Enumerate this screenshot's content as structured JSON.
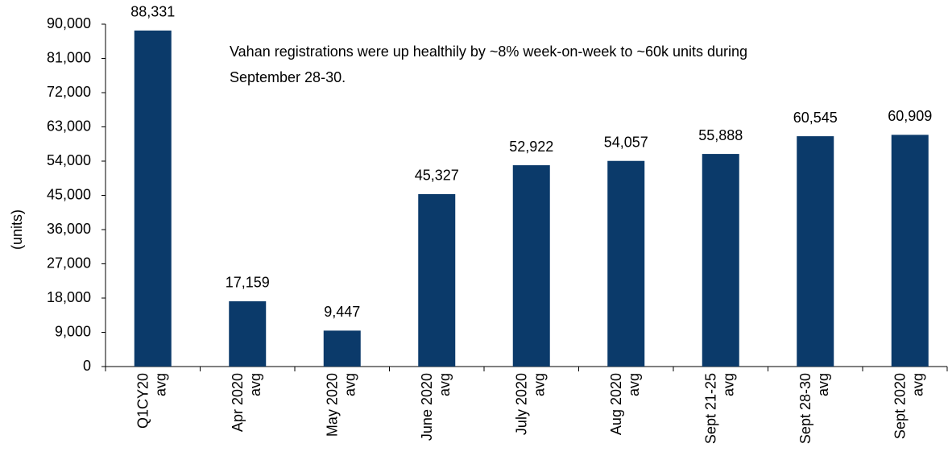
{
  "chart_data": {
    "type": "bar",
    "y_label": "(units)",
    "annotation": [
      "Vahan registrations were up healthily by ~8% week-on-week to ~60k units during",
      "September 28-30."
    ],
    "categories": [
      [
        "Q1CY20",
        "avg"
      ],
      [
        "Apr 2020",
        "avg"
      ],
      [
        "May 2020",
        "avg"
      ],
      [
        "June 2020",
        "avg"
      ],
      [
        "July 2020",
        "avg"
      ],
      [
        "Aug 2020",
        "avg"
      ],
      [
        "Sept 21-25",
        "avg"
      ],
      [
        "Sept 28-30",
        "avg"
      ],
      [
        "Sept 2020",
        "avg"
      ]
    ],
    "values": [
      88331,
      17159,
      9447,
      45327,
      52922,
      54057,
      55888,
      60545,
      60909
    ],
    "value_labels": [
      "88,331",
      "17,159",
      "9,447",
      "45,327",
      "52,922",
      "54,057",
      "55,888",
      "60,545",
      "60,909"
    ],
    "color": "#0b3a6a",
    "ylim": [
      0,
      90000
    ],
    "yticks": [
      0,
      {
        "value": 9000,
        "label": "9,000"
      },
      {
        "value": 18000,
        "label": "18,000"
      },
      {
        "value": 27000,
        "label": "27,000"
      },
      {
        "value": 36000,
        "label": "36,000"
      },
      {
        "value": 45000,
        "label": "45,000"
      },
      {
        "value": 54000,
        "label": "54,000"
      },
      {
        "value": 63000,
        "label": "63,000"
      },
      {
        "value": 72000,
        "label": "72,000"
      },
      {
        "value": 81000,
        "label": "81,000"
      },
      {
        "value": 90000,
        "label": "90,000"
      }
    ]
  }
}
